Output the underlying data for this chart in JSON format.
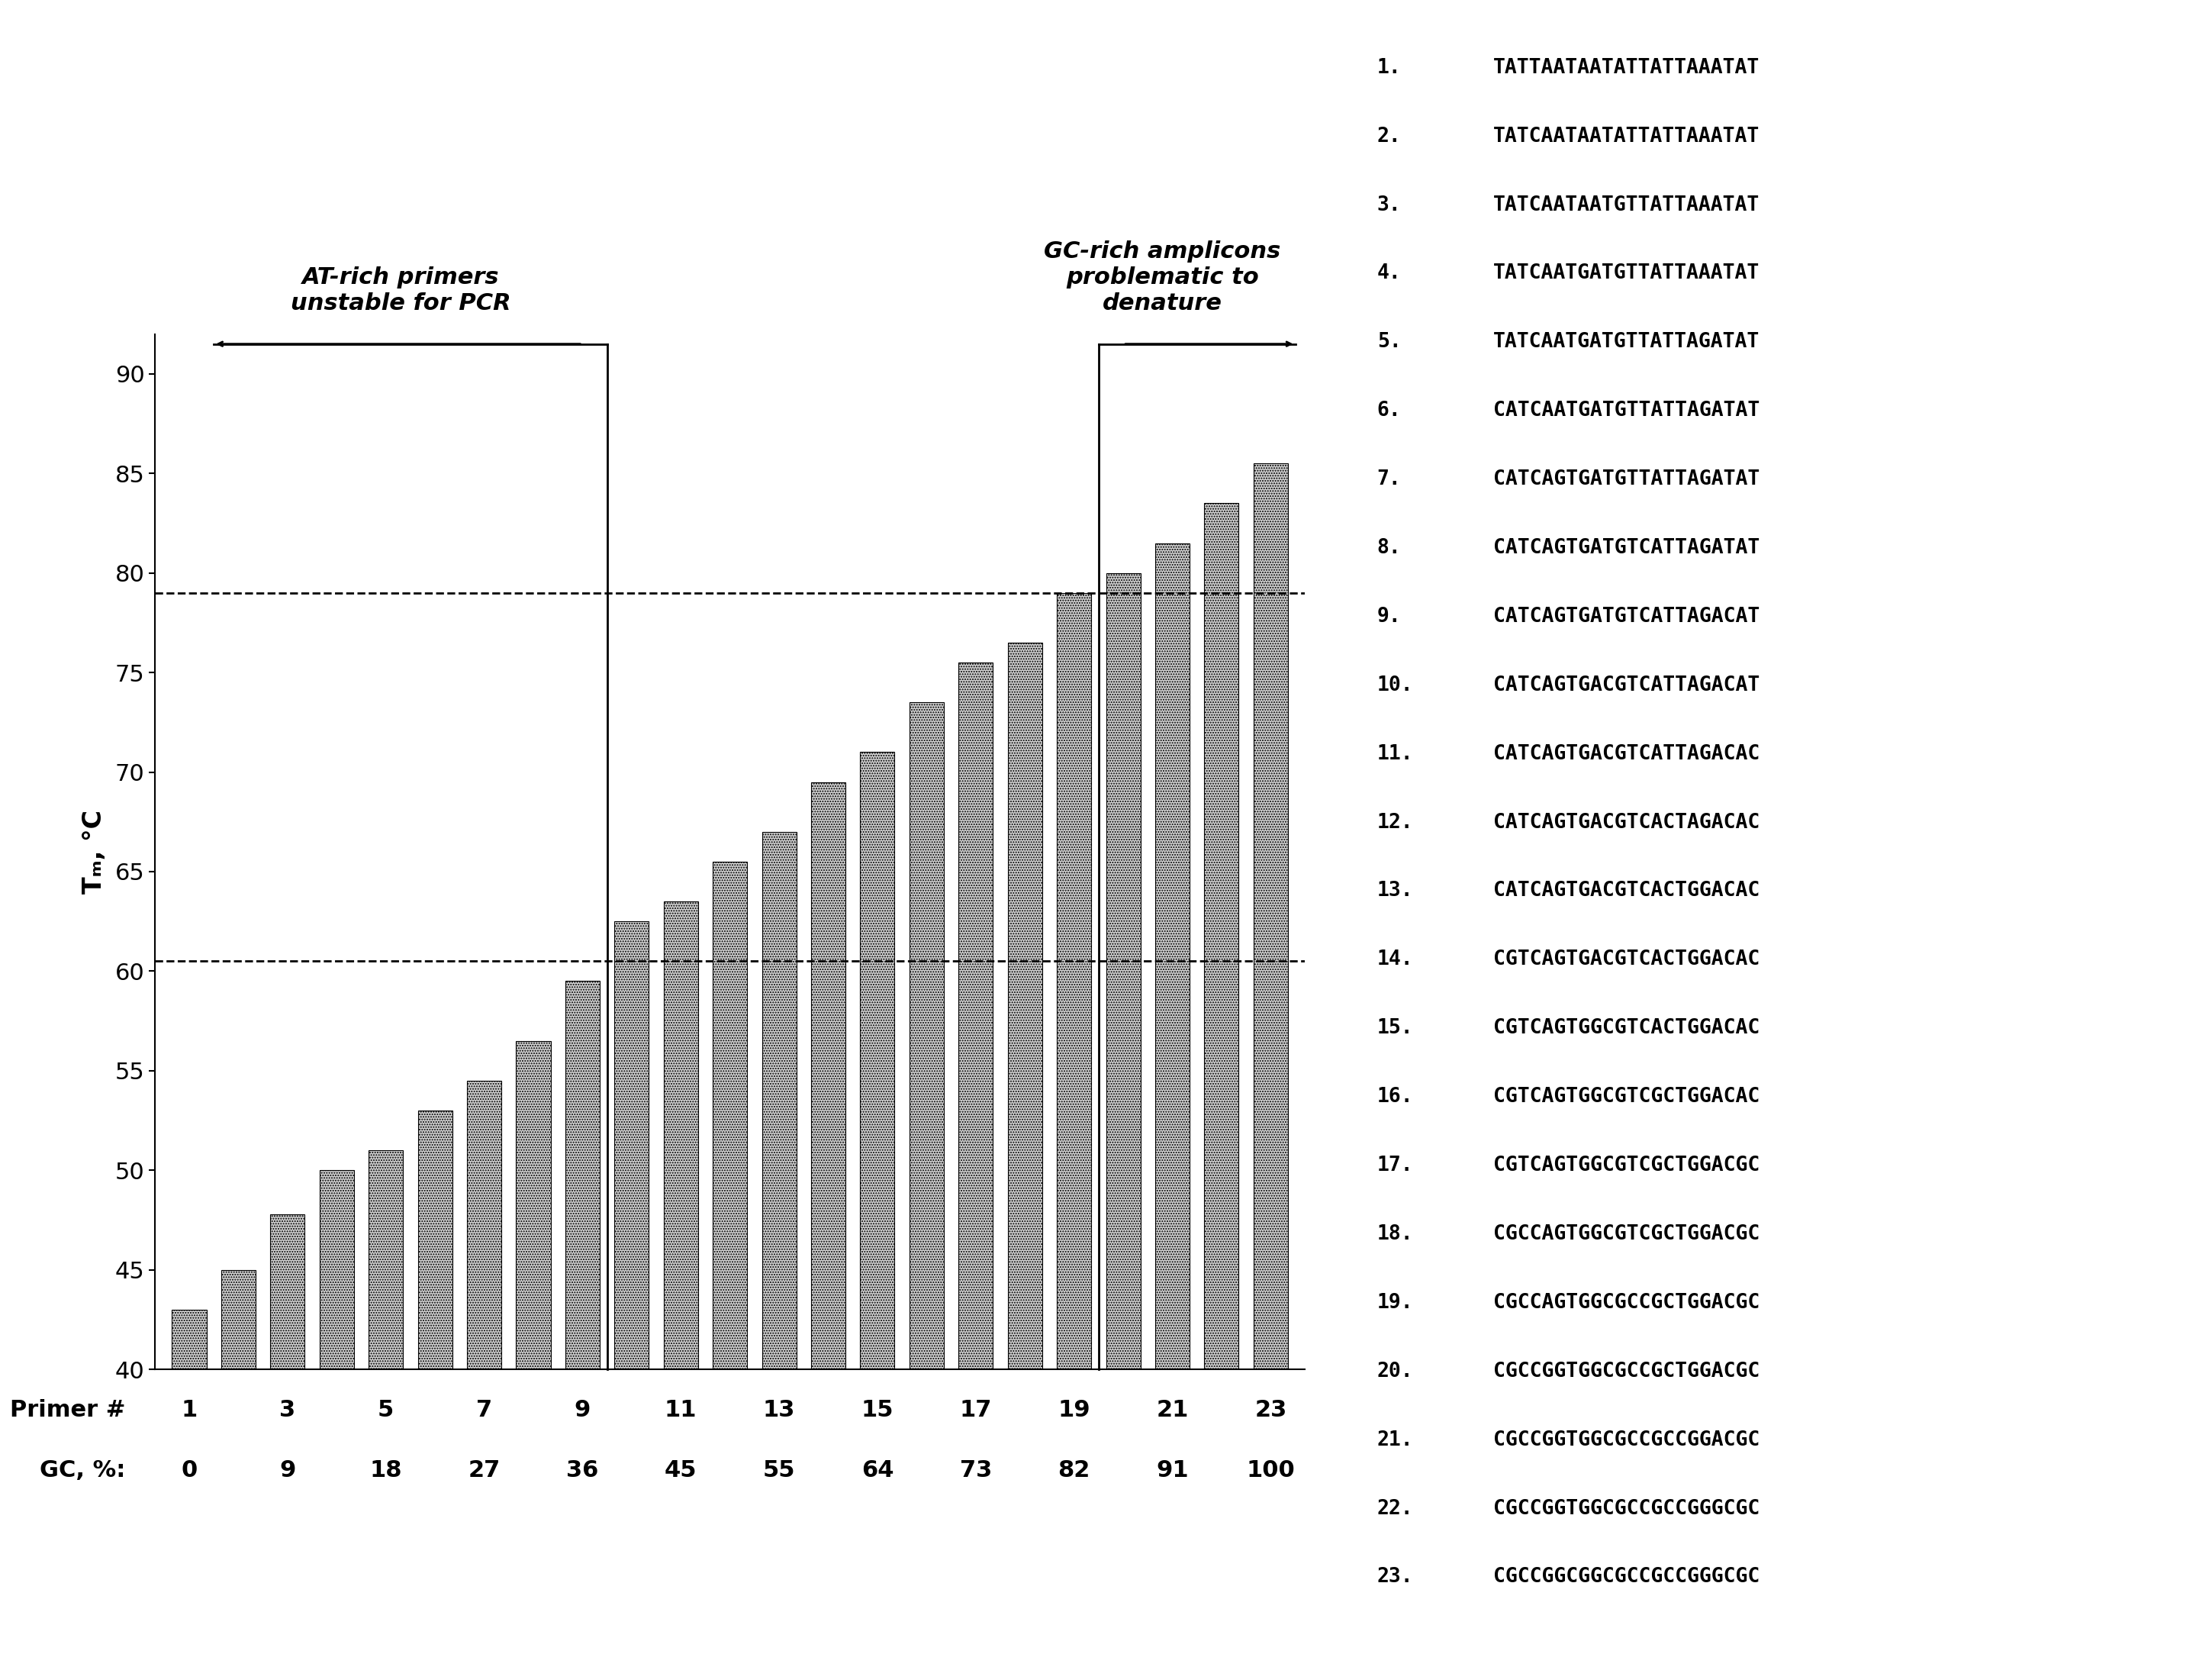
{
  "bar_x": [
    1,
    2,
    3,
    4,
    5,
    6,
    7,
    8,
    9,
    10,
    11,
    12,
    13,
    14,
    15,
    16,
    17,
    18,
    19,
    20,
    21,
    22,
    23
  ],
  "bar_heights": [
    43.0,
    45.0,
    47.8,
    50.0,
    51.0,
    53.0,
    54.5,
    56.5,
    59.5,
    62.5,
    63.5,
    65.5,
    67.0,
    69.5,
    71.0,
    73.5,
    75.5,
    76.5,
    79.0,
    80.0,
    81.5,
    83.5,
    85.5
  ],
  "primer_labels": [
    "1",
    "3",
    "5",
    "7",
    "9",
    "11",
    "13",
    "15",
    "17",
    "19",
    "21",
    "23"
  ],
  "primer_x": [
    1,
    3,
    5,
    7,
    9,
    11,
    13,
    15,
    17,
    19,
    21,
    23
  ],
  "gc_labels": [
    "0",
    "9",
    "18",
    "27",
    "36",
    "45",
    "55",
    "64",
    "73",
    "82",
    "91",
    "100"
  ],
  "gc_x": [
    1,
    3,
    5,
    7,
    9,
    11,
    13,
    15,
    17,
    19,
    21,
    23
  ],
  "ylabel": "Tₘ, °C",
  "ylim": [
    40,
    92
  ],
  "yticks": [
    40,
    45,
    50,
    55,
    60,
    65,
    70,
    75,
    80,
    85,
    90
  ],
  "dashed_line1": 79.0,
  "dashed_line2": 60.5,
  "annotation1_text": "AT-rich primers\nunstable for PCR",
  "annotation2_text": "GC-rich amplicons\nproblematic to\ndenature",
  "sequences": [
    "TATTAATAATATTATTAAATAT",
    "TATCAATAATATTATTAAATAT",
    "TATCAATAATGTTATTAAATAT",
    "TATCAATGATGTTATTAAATAT",
    "TATCAATGATGTTATTAGATAT",
    "CATCAATGATGTTATTAGATAT",
    "CATCAGTGATGTTATTAGATAT",
    "CATCAGTGATGTCATTAGATAT",
    "CATCAGTGATGTCATTAGACAT",
    "CATCAGTGACGTCATTAGACAT",
    "CATCAGTGACGTCATTAGACAC",
    "CATCAGTGACGTCACTAGACAC",
    "CATCAGTGACGTCACTGGACAC",
    "CGTCAGTGACGTCACTGGACAC",
    "CGTCAGTGGCGTCACTGGACAC",
    "CGTCAGTGGCGTCGCTGGACAC",
    "CGTCAGTGGCGTCGCTGGACGC",
    "CGCCAGTGGCGTCGCTGGACGC",
    "CGCCAGTGGCGCCGCTGGACGC",
    "CGCCGGTGGCGCCGCTGGACGC",
    "CGCCGGTGGCGCCGCCGGACGC",
    "CGCCGGTGGCGCCGCCGGGCGC",
    "CGCCGGCGGCGCCGCCGGGCGC"
  ]
}
